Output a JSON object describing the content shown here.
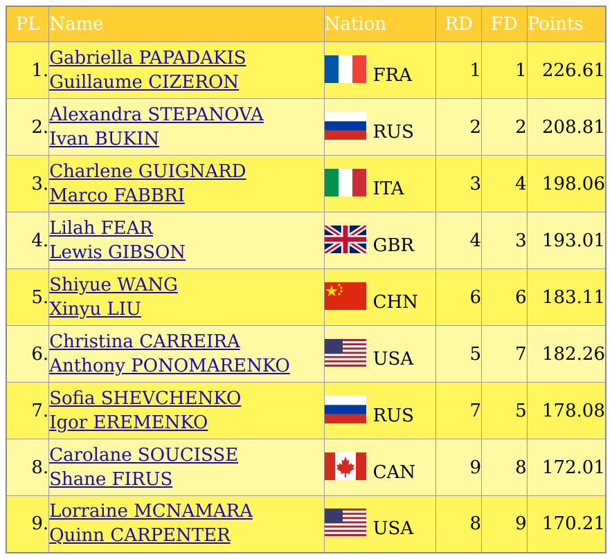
{
  "headers": {
    "pl": "PL",
    "name": "Name",
    "nation": "Nation",
    "rd": "RD",
    "fd": "FD",
    "points": "Points"
  },
  "rows": [
    {
      "pl": "1.",
      "name1": "Gabriella PAPADAKIS",
      "name2": "Guillaume CIZERON",
      "nation": "FRA",
      "flag": "france-flag-icon",
      "rd": "1",
      "fd": "1",
      "points": "226.61"
    },
    {
      "pl": "2.",
      "name1": "Alexandra STEPANOVA",
      "name2": "Ivan BUKIN",
      "nation": "RUS",
      "flag": "russia-flag-icon",
      "rd": "2",
      "fd": "2",
      "points": "208.81"
    },
    {
      "pl": "3.",
      "name1": "Charlene GUIGNARD",
      "name2": "Marco FABBRI",
      "nation": "ITA",
      "flag": "italy-flag-icon",
      "rd": "3",
      "fd": "4",
      "points": "198.06"
    },
    {
      "pl": "4.",
      "name1": "Lilah FEAR",
      "name2": "Lewis GIBSON",
      "nation": "GBR",
      "flag": "uk-flag-icon",
      "rd": "4",
      "fd": "3",
      "points": "193.01"
    },
    {
      "pl": "5.",
      "name1": "Shiyue WANG",
      "name2": "Xinyu LIU",
      "nation": "CHN",
      "flag": "china-flag-icon",
      "rd": "6",
      "fd": "6",
      "points": "183.11"
    },
    {
      "pl": "6.",
      "name1": "Christina CARREIRA",
      "name2": "Anthony PONOMARENKO",
      "nation": "USA",
      "flag": "usa-flag-icon",
      "rd": "5",
      "fd": "7",
      "points": "182.26"
    },
    {
      "pl": "7.",
      "name1": "Sofia SHEVCHENKO",
      "name2": "Igor EREMENKO",
      "nation": "RUS",
      "flag": "russia-flag-icon",
      "rd": "7",
      "fd": "5",
      "points": "178.08"
    },
    {
      "pl": "8.",
      "name1": "Carolane SOUCISSE",
      "name2": "Shane FIRUS",
      "nation": "CAN",
      "flag": "canada-flag-icon",
      "rd": "9",
      "fd": "8",
      "points": "172.01"
    },
    {
      "pl": "9.",
      "name1": "Lorraine MCNAMARA",
      "name2": "Quinn CARPENTER",
      "nation": "USA",
      "flag": "usa-flag-icon",
      "rd": "8",
      "fd": "9",
      "points": "170.21"
    }
  ],
  "colors": {
    "header_bg": "#ffcf33",
    "row_odd": "#fff65e",
    "row_even": "#fff9a3",
    "link": "#1a0dab"
  }
}
